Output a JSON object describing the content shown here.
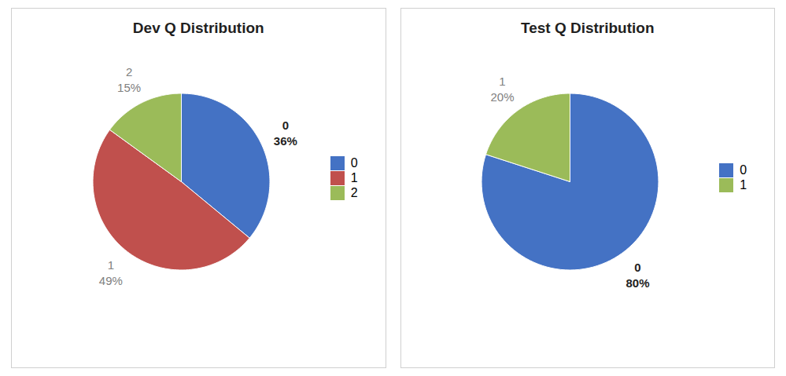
{
  "chart_data": [
    {
      "type": "pie",
      "title": "Dev Q Distribution",
      "categories": [
        "0",
        "1",
        "2"
      ],
      "values": [
        36,
        49,
        15
      ],
      "value_labels": [
        "36%",
        "49%",
        "15%"
      ],
      "colors": [
        "#4472C4",
        "#C0504D",
        "#9BBB59"
      ],
      "data_labels": true,
      "legend": "right"
    },
    {
      "type": "pie",
      "title": "Test Q Distribution",
      "categories": [
        "0",
        "1"
      ],
      "values": [
        80,
        20
      ],
      "value_labels": [
        "80%",
        "20%"
      ],
      "colors": [
        "#4472C4",
        "#9BBB59"
      ],
      "data_labels": true,
      "legend": "right"
    }
  ]
}
